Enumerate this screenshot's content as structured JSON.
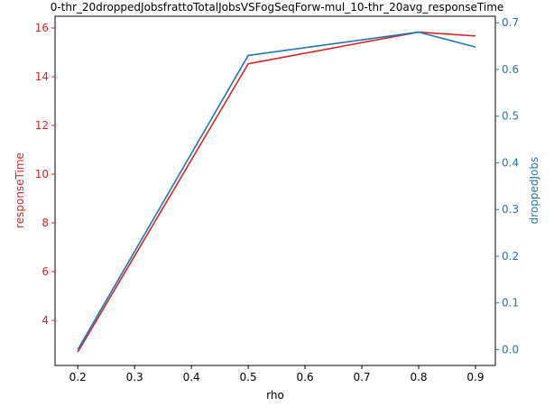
{
  "chart_data": {
    "type": "line",
    "title": "0-thr_20droppedJobsfrattoTotalJobsVSFogSeqForw-mul_10-thr_20avg_responseTime",
    "xlabel": "rho",
    "x": [
      0.2,
      0.5,
      0.8,
      0.9
    ],
    "xlim": [
      0.16,
      0.935
    ],
    "x_ticks": [
      "0.2",
      "0.3",
      "0.4",
      "0.5",
      "0.6",
      "0.7",
      "0.8",
      "0.9"
    ],
    "left_axis": {
      "label": "responseTime",
      "color": "#d62728",
      "ylim": [
        2.15,
        16.48
      ],
      "ticks": [
        "4",
        "6",
        "8",
        "10",
        "12",
        "14",
        "16"
      ]
    },
    "right_axis": {
      "label": "droppedJobs",
      "color": "#1f77b4",
      "ylim": [
        -0.034,
        0.714
      ],
      "ticks": [
        "0.0",
        "0.1",
        "0.2",
        "0.3",
        "0.4",
        "0.5",
        "0.6",
        "0.7"
      ]
    },
    "series": [
      {
        "name": "responseTime",
        "axis": "left",
        "color": "#d62728",
        "values": [
          2.7,
          14.53,
          15.83,
          15.67
        ]
      },
      {
        "name": "droppedJobs",
        "axis": "right",
        "color": "#1f77b4",
        "values": [
          0.0,
          0.63,
          0.68,
          0.648
        ]
      }
    ]
  }
}
